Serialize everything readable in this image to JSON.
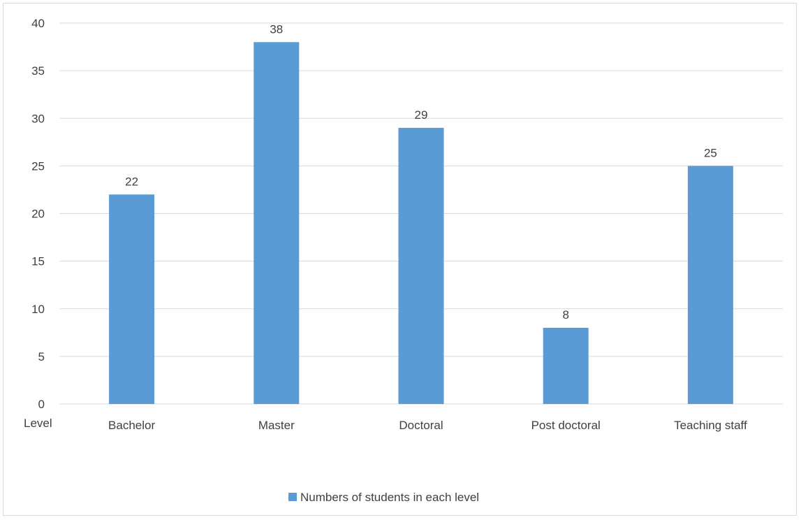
{
  "chart_data": {
    "type": "bar",
    "categories": [
      "Bachelor",
      "Master",
      "Doctoral",
      "Post doctoral",
      "Teaching staff"
    ],
    "series": [
      {
        "name": "Numbers of students in each level",
        "values": [
          22,
          38,
          29,
          8,
          25
        ]
      }
    ],
    "data_labels": [
      "22",
      "38",
      "29",
      "8",
      "25"
    ],
    "y_ticks": [
      "0",
      "5",
      "10",
      "15",
      "20",
      "25",
      "30",
      "35",
      "40"
    ],
    "xlabel": "Level",
    "ylim": [
      0,
      40
    ],
    "grid": true,
    "legend_position": "bottom",
    "colors": {
      "bar": "#5b9bd5",
      "grid": "#d9d9d9",
      "text": "#404040"
    }
  }
}
